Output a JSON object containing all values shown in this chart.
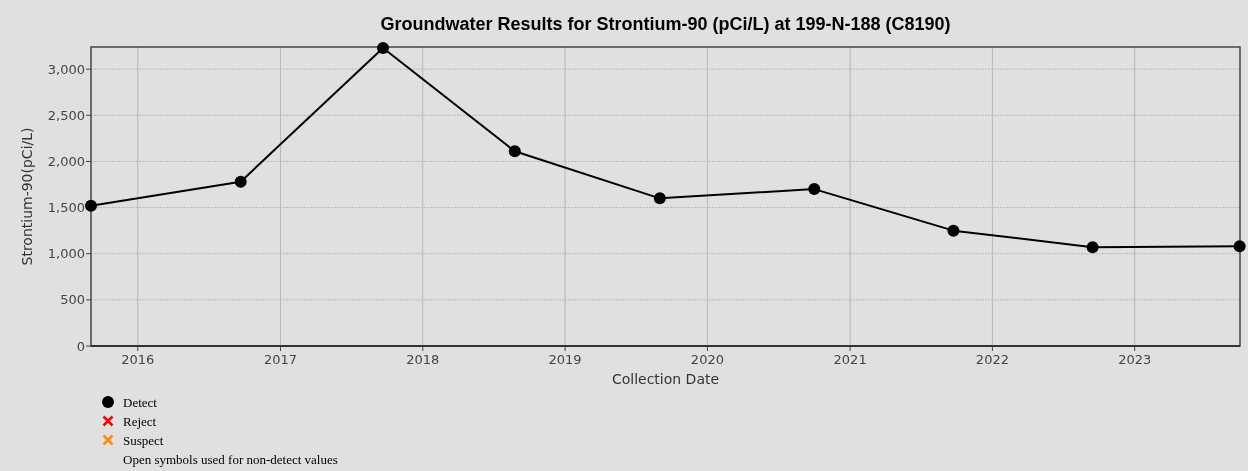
{
  "chart_data": {
    "type": "line",
    "title": "Groundwater Results for Strontium-90 (pCi/L) at 199-N-188 (C8190)",
    "xlabel": "Collection Date",
    "ylabel": "Strontium-90(pCi/L)",
    "x": [
      "2015-09-03",
      "2016-09-21",
      "2017-09-21",
      "2018-08-25",
      "2019-09-01",
      "2020-10-01",
      "2021-09-23",
      "2022-09-15",
      "2023-09-27"
    ],
    "series": [
      {
        "name": "Detect",
        "color": "#000000",
        "marker": "circle",
        "values": [
          1520,
          1780,
          3230,
          2110,
          1600,
          1700,
          1250,
          1070,
          1080
        ]
      },
      {
        "name": "Reject",
        "color": "#ff0000",
        "marker": "cross",
        "values": [
          null,
          null,
          null,
          null,
          null,
          null,
          null,
          null,
          null
        ]
      },
      {
        "name": "Suspect",
        "color": "#ff8c00",
        "marker": "cross",
        "values": [
          null,
          null,
          null,
          null,
          null,
          null,
          null,
          null,
          null
        ]
      }
    ],
    "xlim": [
      "2015-09-03",
      "2023-09-28"
    ],
    "xticks": [
      {
        "value": "2016-01-01",
        "label": "2016"
      },
      {
        "value": "2017-01-01",
        "label": "2017"
      },
      {
        "value": "2018-01-01",
        "label": "2018"
      },
      {
        "value": "2019-01-01",
        "label": "2019"
      },
      {
        "value": "2020-01-01",
        "label": "2020"
      },
      {
        "value": "2021-01-01",
        "label": "2021"
      },
      {
        "value": "2022-01-01",
        "label": "2022"
      },
      {
        "value": "2023-01-01",
        "label": "2023"
      }
    ],
    "ylim": [
      0,
      3240
    ],
    "yticks": [
      {
        "value": 0,
        "label": "0"
      },
      {
        "value": 500,
        "label": "500"
      },
      {
        "value": 1000,
        "label": "1,000"
      },
      {
        "value": 1500,
        "label": "1,500"
      },
      {
        "value": 2000,
        "label": "2,000"
      },
      {
        "value": 2500,
        "label": "2,500"
      },
      {
        "value": 3000,
        "label": "3,000"
      }
    ],
    "grid": true,
    "legend": "bottom left",
    "line_style": "solid",
    "annotations": [
      "Open symbols used for non-detect values"
    ]
  }
}
